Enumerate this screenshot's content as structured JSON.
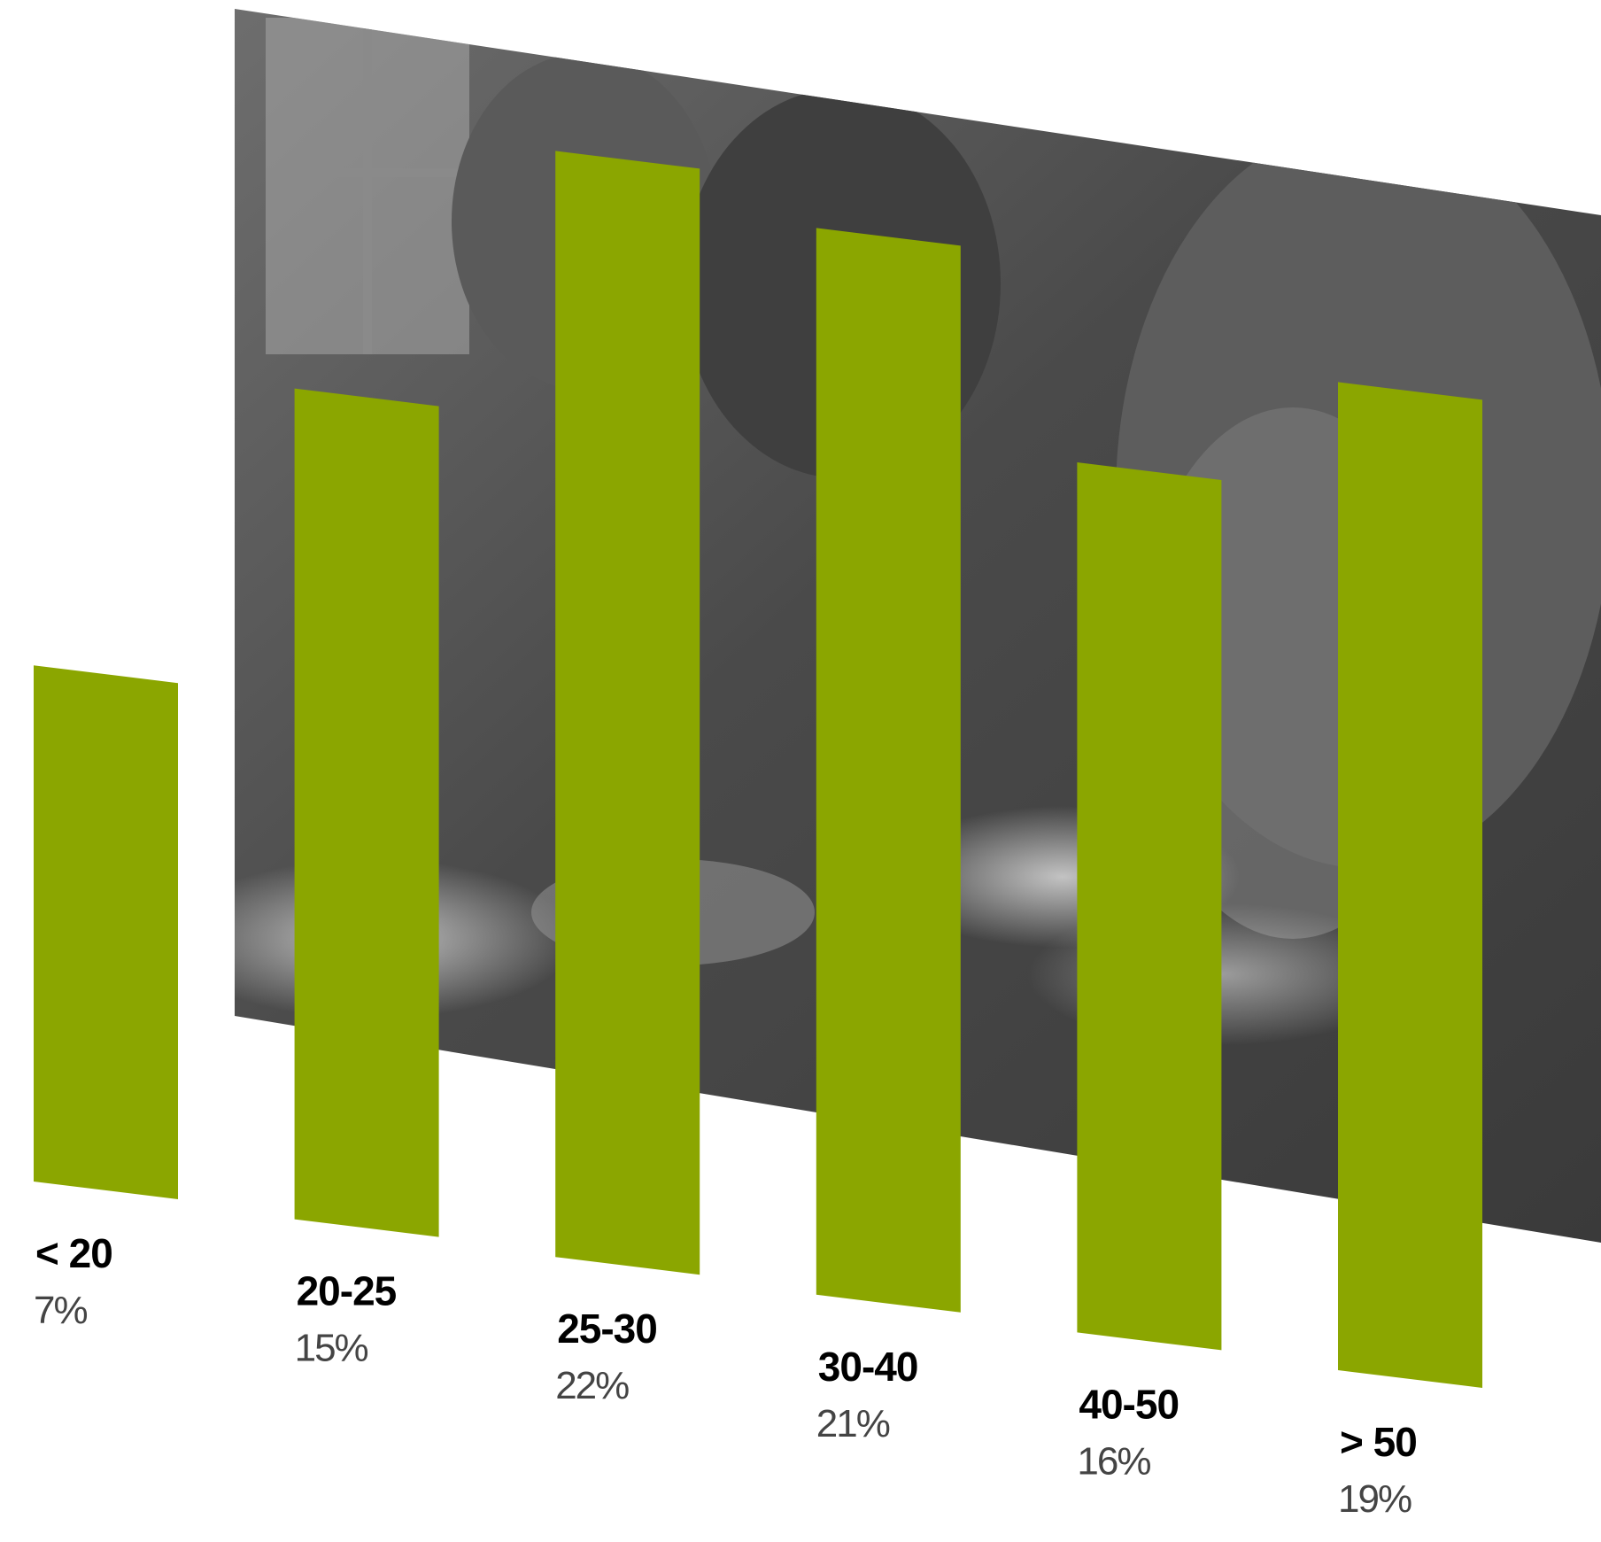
{
  "chart_data": {
    "type": "bar",
    "categories": [
      "< 20",
      "20-25",
      "25-30",
      "30-40",
      "40-50",
      "> 50"
    ],
    "values": [
      7,
      15,
      22,
      21,
      16,
      19
    ],
    "value_labels": [
      "7%",
      "15%",
      "22%",
      "21%",
      "16%",
      "19%"
    ],
    "unit": "%",
    "ylim": [
      0,
      22
    ],
    "grid": false,
    "legend": "none",
    "title": "",
    "xlabel": "",
    "ylabel": ""
  },
  "colors": {
    "bar": "#8ba600",
    "photo_dark": "#3a3a3a",
    "photo_mid": "#7a7a7a",
    "photo_light": "#bdbdbd"
  },
  "background_image": {
    "description_icon": "photo-office-women-grayscale"
  }
}
